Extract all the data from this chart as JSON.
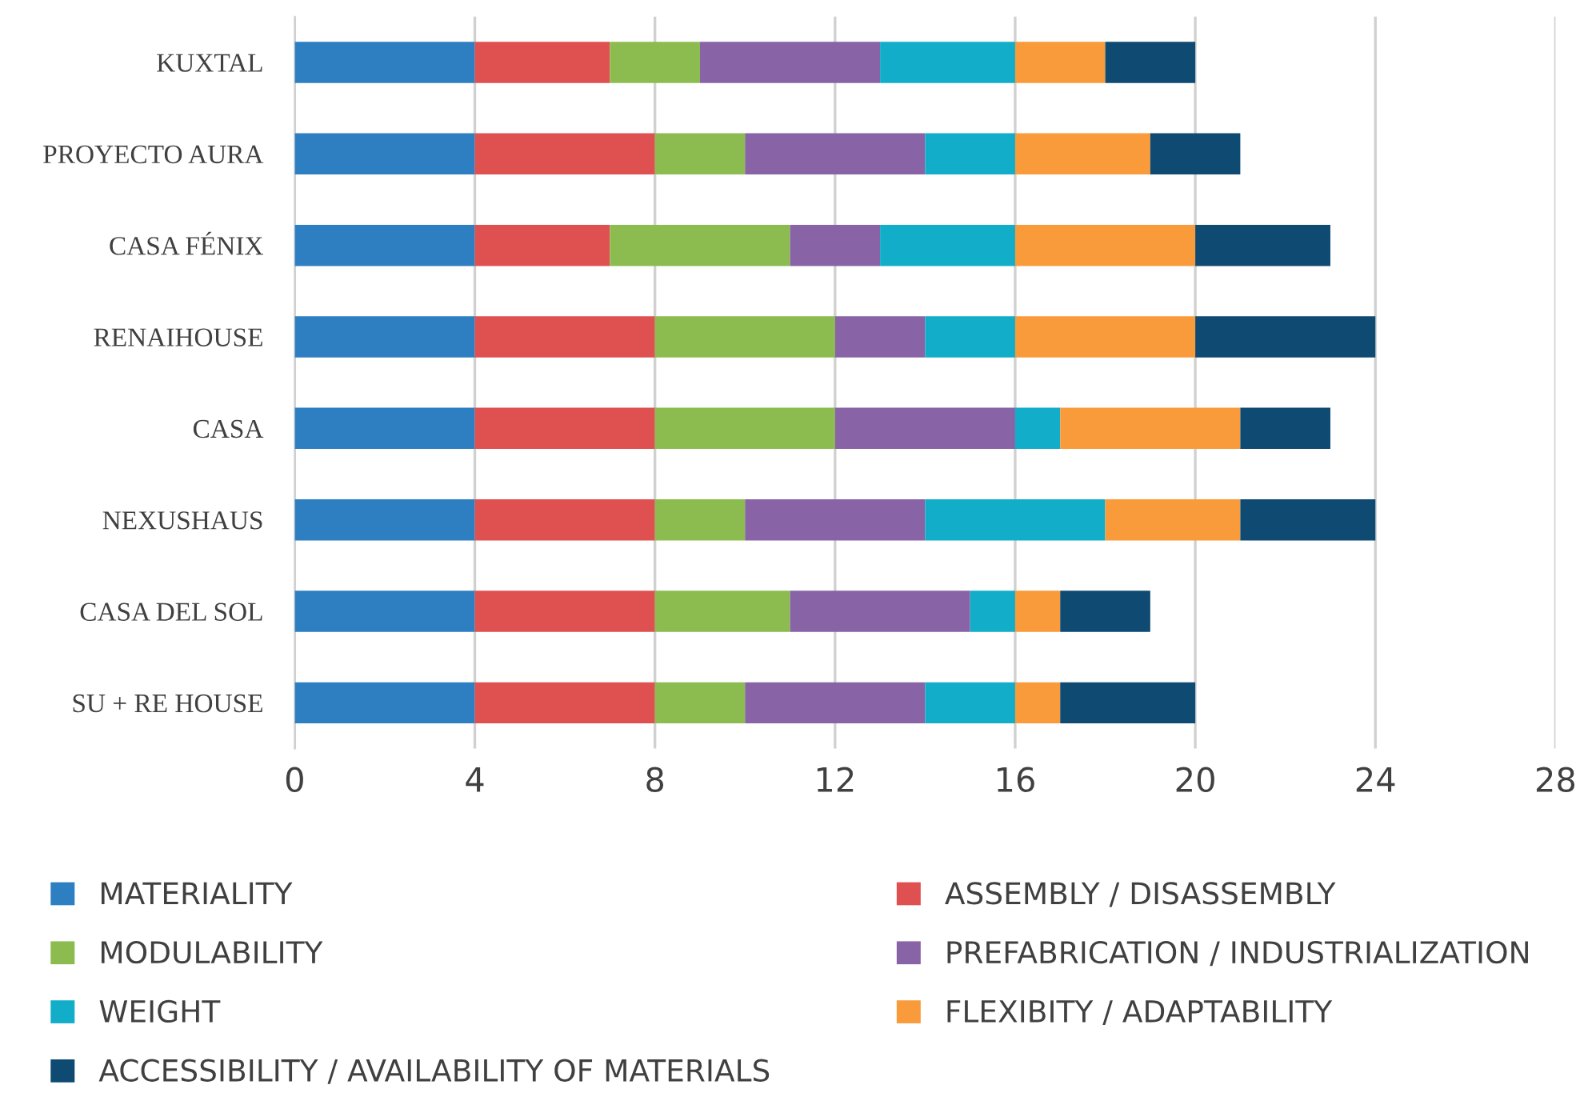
{
  "chart_data": {
    "type": "bar",
    "orientation": "horizontal",
    "stacked": true,
    "categories": [
      "KUXTAL",
      "PROYECTO AURA",
      "CASA FÉNIX",
      "RENAIHOUSE",
      "CASA",
      "NEXUSHAUS",
      "CASA DEL SOL",
      "SU + RE HOUSE"
    ],
    "series": [
      {
        "name": "MATERIALITY",
        "color": "#2e7fc1",
        "values": [
          4,
          4,
          4,
          4,
          4,
          4,
          4,
          4
        ]
      },
      {
        "name": "ASSEMBLY / DISASSEMBLY",
        "color": "#df5050",
        "values": [
          3,
          4,
          3,
          4,
          4,
          4,
          4,
          4
        ]
      },
      {
        "name": "MODULABILITY",
        "color": "#8cbc4f",
        "values": [
          2,
          2,
          4,
          4,
          4,
          2,
          3,
          2
        ]
      },
      {
        "name": "PREFABRICATION / INDUSTRIALIZATION",
        "color": "#8863a6",
        "values": [
          4,
          4,
          2,
          2,
          4,
          4,
          4,
          4
        ]
      },
      {
        "name": "WEIGHT",
        "color": "#11adc9",
        "values": [
          3,
          2,
          3,
          2,
          1,
          4,
          1,
          2
        ]
      },
      {
        "name": "FLEXIBITY / ADAPTABILITY",
        "color": "#f99b3b",
        "values": [
          2,
          3,
          4,
          4,
          4,
          3,
          1,
          1
        ]
      },
      {
        "name": "ACCESSIBILITY / AVAILABILITY OF MATERIALS",
        "color": "#0e4a72",
        "values": [
          2,
          2,
          3,
          4,
          2,
          3,
          2,
          3
        ]
      }
    ],
    "xlim": [
      0,
      28
    ],
    "xticks": [
      0,
      4,
      8,
      12,
      16,
      20,
      24,
      28
    ],
    "grid": "x",
    "legend": "bottom"
  }
}
